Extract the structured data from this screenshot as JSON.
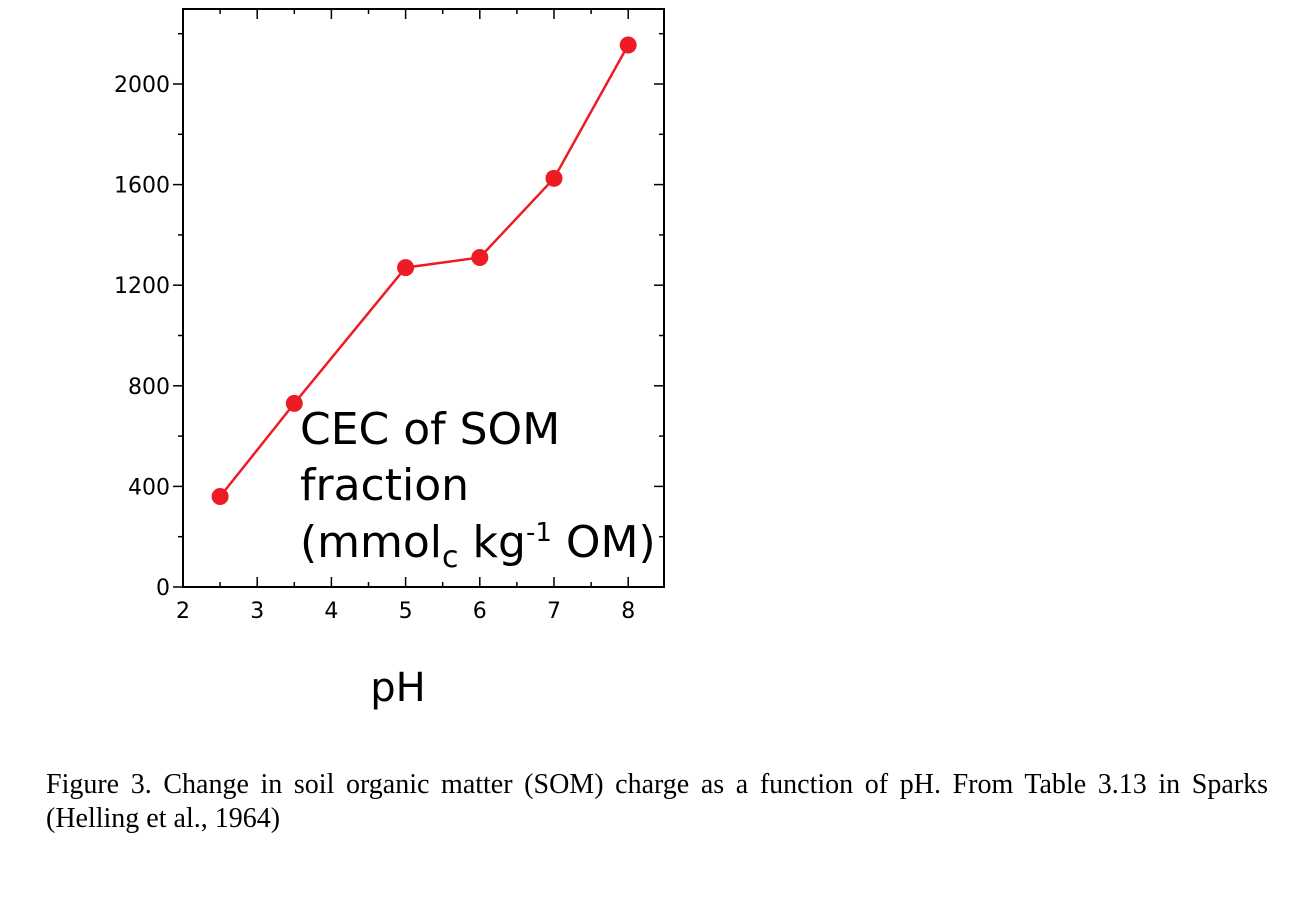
{
  "chart_data": {
    "type": "line",
    "title": "",
    "xlabel": "pH",
    "ylabel": "",
    "xlim": [
      2,
      8.5
    ],
    "ylim": [
      0,
      2300
    ],
    "x_ticks": [
      2,
      3,
      4,
      5,
      6,
      7,
      8
    ],
    "y_ticks": [
      0,
      400,
      800,
      1200,
      1600,
      2000
    ],
    "grid": false,
    "legend": "none",
    "series": [
      {
        "x": [
          2.5,
          3.5,
          5,
          6,
          7,
          8
        ],
        "y": [
          360,
          730,
          1270,
          1310,
          1625,
          2155
        ],
        "color": "#ed1c24",
        "marker": "circle"
      }
    ],
    "annotation": {
      "line1": "CEC of SOM",
      "line2": "fraction",
      "line3_open": "(mmol",
      "line3_sub": "c",
      "line3_mid": " kg",
      "line3_sup": "-1",
      "line3_close": " OM)"
    }
  },
  "caption": "Figure 3. Change in soil organic matter (SOM) charge as a function of pH. From Table 3.13 in Sparks (Helling et al., 1964)"
}
